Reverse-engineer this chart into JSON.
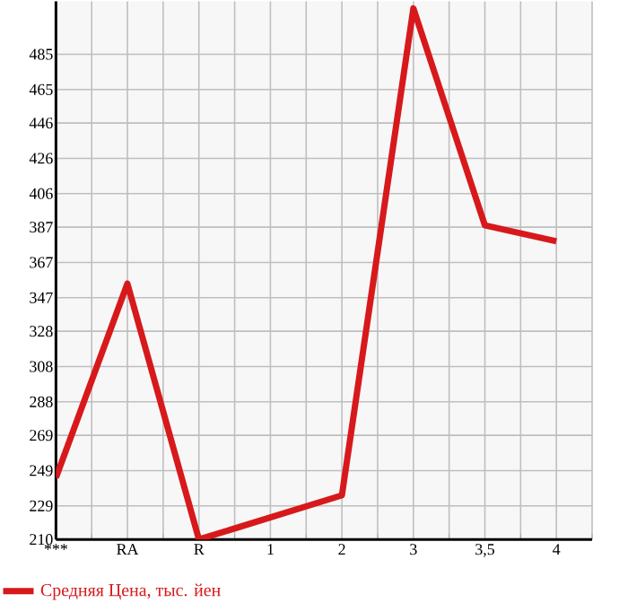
{
  "chart_data": {
    "type": "line",
    "categories": [
      "***",
      "RA",
      "R",
      "1",
      "2",
      "3",
      "3,5",
      "4"
    ],
    "series": [
      {
        "name": "Средняя Цена, тыс. йен",
        "color": "#d7191c",
        "values": [
          245,
          355,
          210,
          null,
          235,
          511,
          388,
          379
        ]
      }
    ],
    "ylim": [
      210,
      515
    ],
    "yticks": [
      210,
      229,
      249,
      269,
      288,
      308,
      328,
      347,
      367,
      387,
      406,
      426,
      446,
      465,
      485
    ],
    "grid": true,
    "legend": "bottom left",
    "marker": "none",
    "line_style": "solid"
  }
}
